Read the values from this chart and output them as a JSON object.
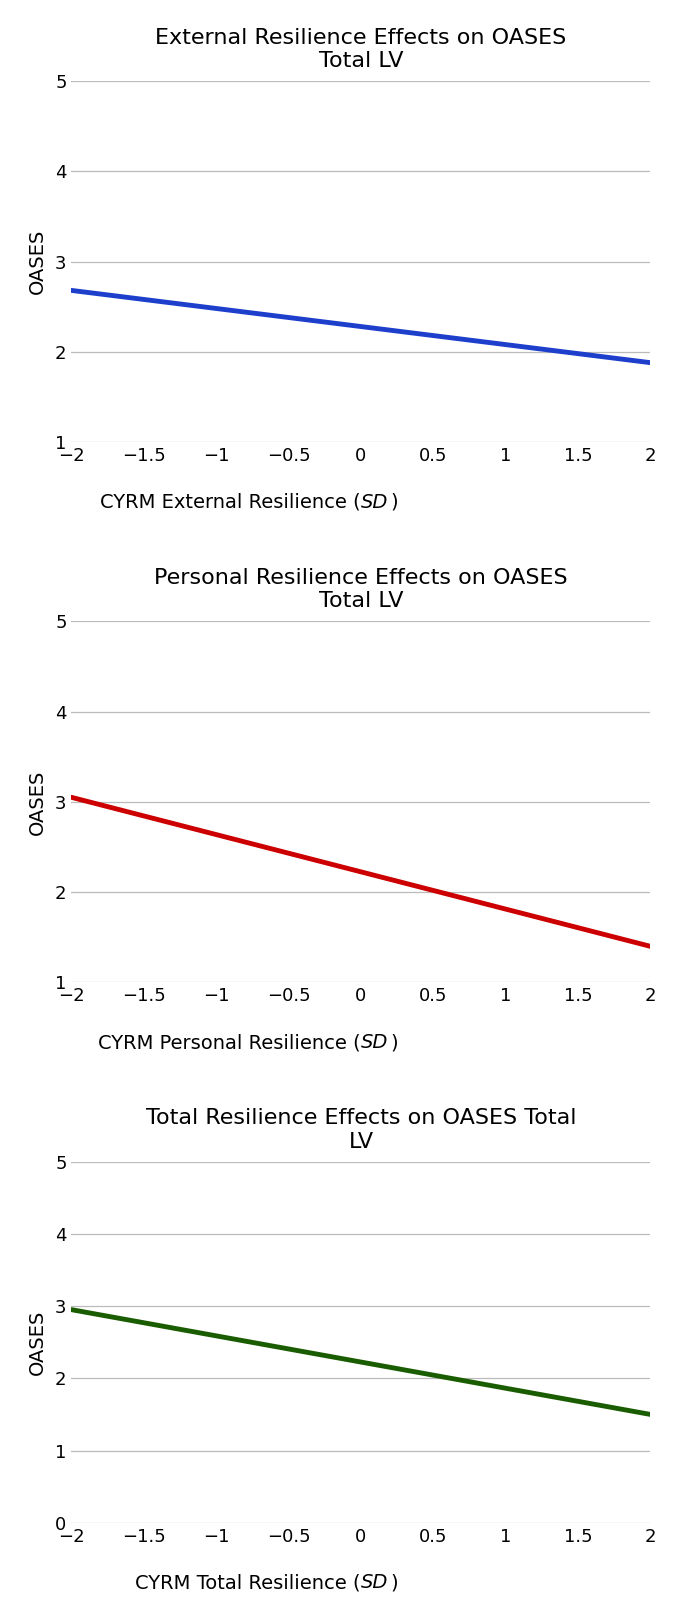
{
  "graphs": [
    {
      "title": "External Resilience Effects on OASES\nTotal LV",
      "xlabel_normal1": "CYRM External Resilience (",
      "xlabel_italic": "SD",
      "xlabel_normal2": ")",
      "ylabel": "OASES",
      "line_x": [
        -2,
        2
      ],
      "line_y": [
        2.68,
        1.88
      ],
      "line_color": "#1E3FCC",
      "ylim": [
        1,
        5
      ],
      "yticks": [
        1,
        2,
        3,
        4,
        5
      ],
      "xlim": [
        -2,
        2
      ],
      "xticks": [
        -2,
        -1.5,
        -1,
        -0.5,
        0,
        0.5,
        1,
        1.5,
        2
      ]
    },
    {
      "title": "Personal Resilience Effects on OASES\nTotal LV",
      "xlabel_normal1": "CYRM Personal Resilience (",
      "xlabel_italic": "SD",
      "xlabel_normal2": ")",
      "ylabel": "OASES",
      "line_x": [
        -2,
        2
      ],
      "line_y": [
        3.05,
        1.4
      ],
      "line_color": "#CC0000",
      "ylim": [
        1,
        5
      ],
      "yticks": [
        1,
        2,
        3,
        4,
        5
      ],
      "xlim": [
        -2,
        2
      ],
      "xticks": [
        -2,
        -1.5,
        -1,
        -0.5,
        0,
        0.5,
        1,
        1.5,
        2
      ]
    },
    {
      "title": "Total Resilience Effects on OASES Total\nLV",
      "xlabel_normal1": "CYRM Total Resilience (",
      "xlabel_italic": "SD",
      "xlabel_normal2": ")",
      "ylabel": "OASES",
      "line_x": [
        -2,
        2
      ],
      "line_y": [
        2.95,
        1.5
      ],
      "line_color": "#1A5C00",
      "ylim": [
        0,
        5
      ],
      "yticks": [
        0,
        1,
        2,
        3,
        4,
        5
      ],
      "xlim": [
        -2,
        2
      ],
      "xticks": [
        -2,
        -1.5,
        -1,
        -0.5,
        0,
        0.5,
        1,
        1.5,
        2
      ]
    }
  ],
  "line_width": 3.5,
  "title_fontsize": 16,
  "label_fontsize": 14,
  "tick_fontsize": 13,
  "grid_color": "#BBBBBB",
  "background_color": "#FFFFFF"
}
